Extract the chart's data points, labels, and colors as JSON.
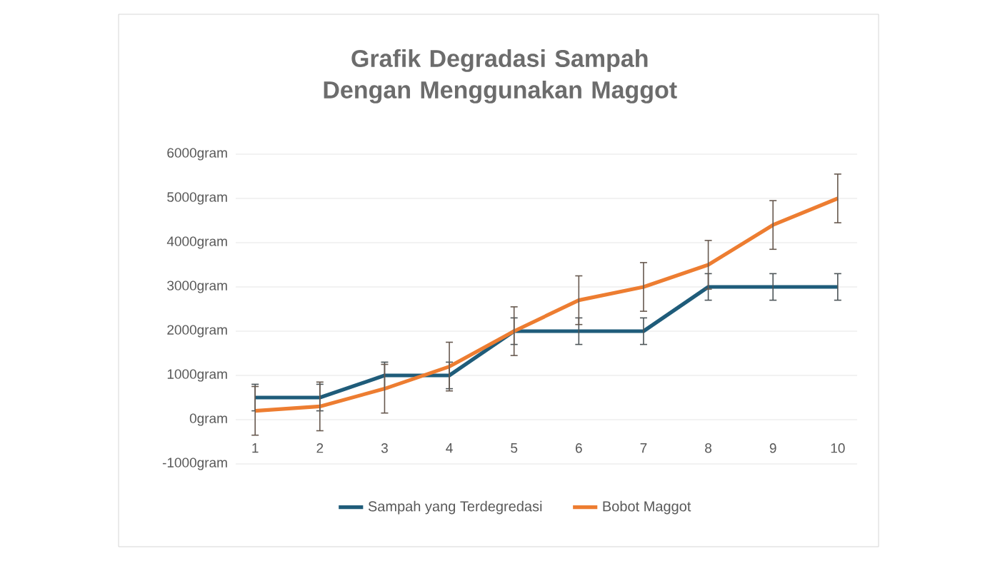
{
  "chart_data": {
    "type": "line",
    "title": "Grafik Degradasi Sampah Dengan Menggunakan Maggot",
    "categories": [
      "1",
      "2",
      "3",
      "4",
      "5",
      "6",
      "7",
      "8",
      "9",
      "10"
    ],
    "series": [
      {
        "name": "Sampah yang Terdegredasi",
        "color": "#1f5c7a",
        "values": [
          500,
          500,
          1000,
          1000,
          2000,
          2000,
          2000,
          3000,
          3000,
          3000
        ],
        "errors": [
          300,
          300,
          300,
          300,
          300,
          300,
          300,
          300,
          300,
          300
        ]
      },
      {
        "name": "Bobot Maggot",
        "color": "#ed7d31",
        "values": [
          200,
          300,
          700,
          1200,
          2000,
          2700,
          3000,
          3500,
          4400,
          5000
        ],
        "errors": [
          550,
          550,
          550,
          550,
          550,
          550,
          550,
          550,
          550,
          550
        ]
      }
    ],
    "ylim": [
      -1000,
      6000
    ],
    "yticks": [
      {
        "value": -1000,
        "label": "-1000gram"
      },
      {
        "value": 0,
        "label": "0gram"
      },
      {
        "value": 1000,
        "label": "1000gram"
      },
      {
        "value": 2000,
        "label": "2000gram"
      },
      {
        "value": 3000,
        "label": "3000gram"
      },
      {
        "value": 4000,
        "label": "4000gram"
      },
      {
        "value": 5000,
        "label": "5000gram"
      },
      {
        "value": 6000,
        "label": "6000gram"
      }
    ],
    "grid": "y",
    "legend": "bottom",
    "marker": "none",
    "line_style": "solid"
  }
}
